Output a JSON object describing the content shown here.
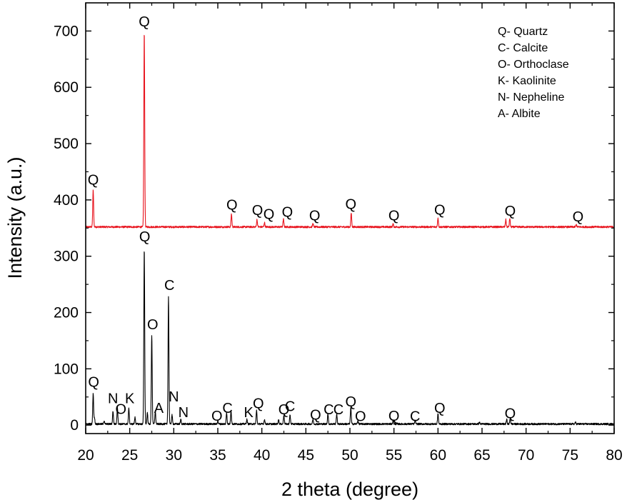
{
  "chart_data": {
    "type": "line",
    "title": "",
    "xlabel": "2 theta (degree)",
    "ylabel": "Intensity (a.u.)",
    "xlim": [
      20,
      80
    ],
    "ylim": [
      -15,
      750
    ],
    "xticks": [
      20,
      25,
      30,
      35,
      40,
      45,
      50,
      55,
      60,
      65,
      70,
      75,
      80
    ],
    "yticks": [
      0,
      100,
      200,
      300,
      400,
      500,
      600,
      700
    ],
    "grid": false,
    "legend_placement": "top-right",
    "legend_items": [
      "Q- Quartz",
      "C- Calcite",
      "O- Orthoclase",
      "K- Kaolinite",
      "N- Nepheline",
      "A- Albite"
    ],
    "series": [
      {
        "color": "#e8141e",
        "baseline": 352,
        "peaks": [
          {
            "x": 20.85,
            "y": 418
          },
          {
            "x": 26.65,
            "y": 698
          },
          {
            "x": 36.55,
            "y": 375
          },
          {
            "x": 39.45,
            "y": 365
          },
          {
            "x": 40.3,
            "y": 360
          },
          {
            "x": 42.45,
            "y": 366
          },
          {
            "x": 45.8,
            "y": 358
          },
          {
            "x": 50.15,
            "y": 377
          },
          {
            "x": 54.9,
            "y": 357
          },
          {
            "x": 60.0,
            "y": 368
          },
          {
            "x": 67.7,
            "y": 365
          },
          {
            "x": 68.15,
            "y": 367
          },
          {
            "x": 75.7,
            "y": 356
          }
        ]
      },
      {
        "color": "#000000",
        "baseline": 2,
        "peaks": [
          {
            "x": 20.85,
            "y": 57
          },
          {
            "x": 21.0,
            "y": 12
          },
          {
            "x": 22.1,
            "y": 8
          },
          {
            "x": 23.1,
            "y": 25
          },
          {
            "x": 23.6,
            "y": 32
          },
          {
            "x": 24.9,
            "y": 30
          },
          {
            "x": 25.6,
            "y": 14
          },
          {
            "x": 26.65,
            "y": 313
          },
          {
            "x": 27.0,
            "y": 22
          },
          {
            "x": 27.5,
            "y": 160
          },
          {
            "x": 27.9,
            "y": 25
          },
          {
            "x": 29.4,
            "y": 228
          },
          {
            "x": 29.8,
            "y": 18
          },
          {
            "x": 30.8,
            "y": 10
          },
          {
            "x": 35.0,
            "y": 8
          },
          {
            "x": 36.0,
            "y": 22
          },
          {
            "x": 36.5,
            "y": 26
          },
          {
            "x": 38.3,
            "y": 10
          },
          {
            "x": 39.4,
            "y": 26
          },
          {
            "x": 40.3,
            "y": 10
          },
          {
            "x": 41.9,
            "y": 10
          },
          {
            "x": 42.5,
            "y": 18
          },
          {
            "x": 43.2,
            "y": 18
          },
          {
            "x": 45.8,
            "y": 10
          },
          {
            "x": 47.5,
            "y": 20
          },
          {
            "x": 48.5,
            "y": 20
          },
          {
            "x": 50.1,
            "y": 32
          },
          {
            "x": 50.9,
            "y": 8
          },
          {
            "x": 54.9,
            "y": 8
          },
          {
            "x": 57.4,
            "y": 8
          },
          {
            "x": 60.0,
            "y": 20
          },
          {
            "x": 64.7,
            "y": 5
          },
          {
            "x": 67.8,
            "y": 10
          },
          {
            "x": 68.2,
            "y": 12
          },
          {
            "x": 75.6,
            "y": 5
          }
        ]
      }
    ],
    "annotations": [
      {
        "text": "Q",
        "x": 20.85,
        "y": 427
      },
      {
        "text": "Q",
        "x": 26.65,
        "y": 708
      },
      {
        "text": "Q",
        "x": 36.6,
        "y": 383
      },
      {
        "text": "Q",
        "x": 39.5,
        "y": 373
      },
      {
        "text": "Q",
        "x": 40.8,
        "y": 366
      },
      {
        "text": "Q",
        "x": 42.9,
        "y": 370
      },
      {
        "text": "Q",
        "x": 46.0,
        "y": 364
      },
      {
        "text": "Q",
        "x": 50.1,
        "y": 384
      },
      {
        "text": "Q",
        "x": 55.0,
        "y": 364
      },
      {
        "text": "Q",
        "x": 60.2,
        "y": 374
      },
      {
        "text": "Q",
        "x": 68.2,
        "y": 372
      },
      {
        "text": "Q",
        "x": 75.9,
        "y": 362
      },
      {
        "text": "Q",
        "x": 20.9,
        "y": 68
      },
      {
        "text": "N",
        "x": 23.1,
        "y": 39
      },
      {
        "text": "O",
        "x": 24.0,
        "y": 20
      },
      {
        "text": "K",
        "x": 25.0,
        "y": 39
      },
      {
        "text": "Q",
        "x": 26.7,
        "y": 326
      },
      {
        "text": "O",
        "x": 27.6,
        "y": 170
      },
      {
        "text": "A",
        "x": 28.3,
        "y": 22
      },
      {
        "text": "C",
        "x": 29.5,
        "y": 240
      },
      {
        "text": "N",
        "x": 30.0,
        "y": 42
      },
      {
        "text": "N",
        "x": 31.1,
        "y": 14
      },
      {
        "text": "O",
        "x": 34.9,
        "y": 8
      },
      {
        "text": "C",
        "x": 36.1,
        "y": 22
      },
      {
        "text": "K",
        "x": 38.5,
        "y": 14
      },
      {
        "text": "Q",
        "x": 39.6,
        "y": 30
      },
      {
        "text": "Q",
        "x": 42.5,
        "y": 19
      },
      {
        "text": "C",
        "x": 43.2,
        "y": 25
      },
      {
        "text": "Q",
        "x": 46.1,
        "y": 10
      },
      {
        "text": "C",
        "x": 47.6,
        "y": 19
      },
      {
        "text": "C",
        "x": 48.7,
        "y": 19
      },
      {
        "text": "Q",
        "x": 50.1,
        "y": 33
      },
      {
        "text": "O",
        "x": 51.2,
        "y": 7
      },
      {
        "text": "Q",
        "x": 55.0,
        "y": 8
      },
      {
        "text": "C",
        "x": 57.4,
        "y": 7
      },
      {
        "text": "Q",
        "x": 60.2,
        "y": 22
      },
      {
        "text": "Q",
        "x": 68.2,
        "y": 12
      }
    ]
  }
}
